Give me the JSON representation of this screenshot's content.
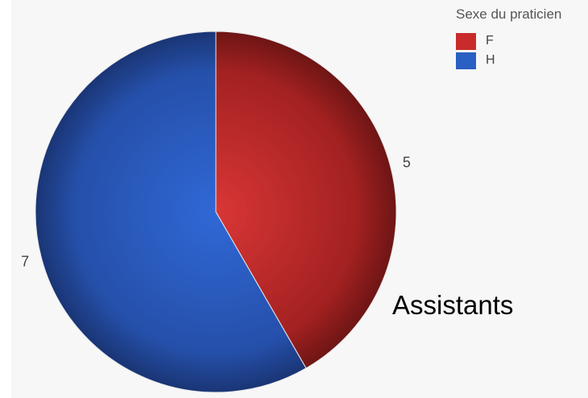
{
  "chart_data": {
    "type": "pie",
    "categories": [
      "F",
      "H"
    ],
    "values": [
      5,
      7
    ],
    "data_labels": [
      "5",
      "7"
    ],
    "colors": [
      "#c92b2b",
      "#2a5fc4"
    ],
    "legend_title": "Sexe du praticien",
    "legend_placement": "top-right",
    "caption": "Assistants",
    "start_angle_deg": 0,
    "direction": "clockwise"
  }
}
